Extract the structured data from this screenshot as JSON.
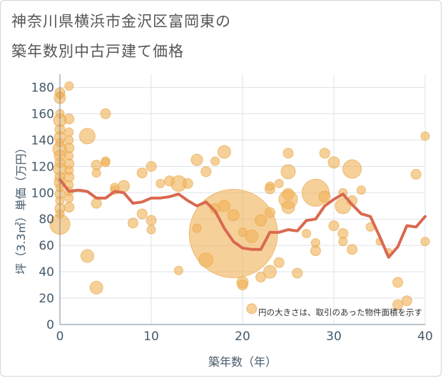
{
  "title_line1": "神奈川県横浜市金沢区富岡東の",
  "title_line2": "築年数別中古戸建て価格",
  "chart_data": {
    "type": "scatter",
    "xlabel": "築年数（年）",
    "ylabel": "坪（3.3㎡）単価（万円）",
    "xlim": [
      0,
      40
    ],
    "ylim": [
      0,
      190
    ],
    "xticks": [
      "0",
      "10",
      "20",
      "30",
      "40"
    ],
    "yticks": [
      "0",
      "20",
      "40",
      "60",
      "80",
      "100",
      "120",
      "140",
      "160",
      "180"
    ],
    "note": "円の大きさは、取引のあった物件面積を示す",
    "grid": true,
    "bubble_color": "#f0b35a",
    "line_color": "#d9694f",
    "bubbles": [
      {
        "x": 0,
        "y": 176,
        "r": 7
      },
      {
        "x": 0,
        "y": 172,
        "r": 8
      },
      {
        "x": 0,
        "y": 160,
        "r": 6
      },
      {
        "x": 0,
        "y": 155,
        "r": 9
      },
      {
        "x": 0,
        "y": 148,
        "r": 7
      },
      {
        "x": 0,
        "y": 142,
        "r": 8
      },
      {
        "x": 0,
        "y": 138,
        "r": 6
      },
      {
        "x": 0,
        "y": 133,
        "r": 10
      },
      {
        "x": 0,
        "y": 128,
        "r": 8
      },
      {
        "x": 0,
        "y": 123,
        "r": 7
      },
      {
        "x": 0,
        "y": 118,
        "r": 9
      },
      {
        "x": 0,
        "y": 112,
        "r": 7
      },
      {
        "x": 0,
        "y": 108,
        "r": 8
      },
      {
        "x": 0,
        "y": 104,
        "r": 6
      },
      {
        "x": 0,
        "y": 99,
        "r": 7
      },
      {
        "x": 0,
        "y": 94,
        "r": 6
      },
      {
        "x": 0,
        "y": 88,
        "r": 7
      },
      {
        "x": 0,
        "y": 84,
        "r": 6
      },
      {
        "x": 0,
        "y": 76,
        "r": 14
      },
      {
        "x": 0,
        "y": 174,
        "r": 5
      },
      {
        "x": 1,
        "y": 181,
        "r": 6
      },
      {
        "x": 1,
        "y": 156,
        "r": 7
      },
      {
        "x": 1,
        "y": 146,
        "r": 6
      },
      {
        "x": 1,
        "y": 140,
        "r": 6
      },
      {
        "x": 1,
        "y": 134,
        "r": 7
      },
      {
        "x": 1,
        "y": 128,
        "r": 6
      },
      {
        "x": 1,
        "y": 122,
        "r": 7
      },
      {
        "x": 1,
        "y": 117,
        "r": 6
      },
      {
        "x": 1,
        "y": 112,
        "r": 7
      },
      {
        "x": 1,
        "y": 106,
        "r": 6
      },
      {
        "x": 1,
        "y": 101,
        "r": 6
      },
      {
        "x": 1,
        "y": 96,
        "r": 6
      },
      {
        "x": 1,
        "y": 89,
        "r": 7
      },
      {
        "x": 3,
        "y": 143,
        "r": 11
      },
      {
        "x": 3,
        "y": 52,
        "r": 9
      },
      {
        "x": 4,
        "y": 121,
        "r": 7
      },
      {
        "x": 4,
        "y": 115,
        "r": 6
      },
      {
        "x": 4,
        "y": 92,
        "r": 7
      },
      {
        "x": 4,
        "y": 28,
        "r": 9
      },
      {
        "x": 5,
        "y": 160,
        "r": 7
      },
      {
        "x": 5,
        "y": 124,
        "r": 6
      },
      {
        "x": 5,
        "y": 123,
        "r": 6
      },
      {
        "x": 6,
        "y": 104,
        "r": 6
      },
      {
        "x": 6,
        "y": 102,
        "r": 6
      },
      {
        "x": 7,
        "y": 105,
        "r": 8
      },
      {
        "x": 8,
        "y": 77,
        "r": 7
      },
      {
        "x": 9,
        "y": 115,
        "r": 7
      },
      {
        "x": 9,
        "y": 84,
        "r": 7
      },
      {
        "x": 10,
        "y": 120,
        "r": 7
      },
      {
        "x": 10,
        "y": 79,
        "r": 7
      },
      {
        "x": 10,
        "y": 72,
        "r": 6
      },
      {
        "x": 11,
        "y": 107,
        "r": 6
      },
      {
        "x": 12,
        "y": 109,
        "r": 7
      },
      {
        "x": 13,
        "y": 107,
        "r": 11
      },
      {
        "x": 13,
        "y": 41,
        "r": 6
      },
      {
        "x": 14,
        "y": 107,
        "r": 7
      },
      {
        "x": 15,
        "y": 125,
        "r": 8
      },
      {
        "x": 15,
        "y": 73,
        "r": 6
      },
      {
        "x": 16,
        "y": 116,
        "r": 7
      },
      {
        "x": 16,
        "y": 49,
        "r": 10
      },
      {
        "x": 17,
        "y": 124,
        "r": 6
      },
      {
        "x": 17,
        "y": 88,
        "r": 7
      },
      {
        "x": 18,
        "y": 131,
        "r": 9
      },
      {
        "x": 18,
        "y": 90,
        "r": 8
      },
      {
        "x": 19,
        "y": 69,
        "r": 62
      },
      {
        "x": 19,
        "y": 83,
        "r": 8
      },
      {
        "x": 20,
        "y": 70,
        "r": 6
      },
      {
        "x": 20,
        "y": 32,
        "r": 8
      },
      {
        "x": 20,
        "y": 30,
        "r": 7
      },
      {
        "x": 21,
        "y": 12,
        "r": 7
      },
      {
        "x": 21,
        "y": 67,
        "r": 9
      },
      {
        "x": 22,
        "y": 79,
        "r": 8
      },
      {
        "x": 22,
        "y": 36,
        "r": 7
      },
      {
        "x": 23,
        "y": 103,
        "r": 7
      },
      {
        "x": 23,
        "y": 105,
        "r": 6
      },
      {
        "x": 23,
        "y": 85,
        "r": 7
      },
      {
        "x": 23,
        "y": 40,
        "r": 9
      },
      {
        "x": 24,
        "y": 107,
        "r": 6
      },
      {
        "x": 24,
        "y": 47,
        "r": 7
      },
      {
        "x": 25,
        "y": 130,
        "r": 7
      },
      {
        "x": 25,
        "y": 116,
        "r": 10
      },
      {
        "x": 25,
        "y": 99,
        "r": 8
      },
      {
        "x": 25,
        "y": 95,
        "r": 13
      },
      {
        "x": 25,
        "y": 89,
        "r": 9
      },
      {
        "x": 26,
        "y": 39,
        "r": 7
      },
      {
        "x": 27,
        "y": 69,
        "r": 6
      },
      {
        "x": 28,
        "y": 100,
        "r": 19
      },
      {
        "x": 28,
        "y": 62,
        "r": 6
      },
      {
        "x": 28,
        "y": 56,
        "r": 7
      },
      {
        "x": 29,
        "y": 130,
        "r": 7
      },
      {
        "x": 29,
        "y": 97,
        "r": 8
      },
      {
        "x": 30,
        "y": 123,
        "r": 8
      },
      {
        "x": 30,
        "y": 75,
        "r": 7
      },
      {
        "x": 31,
        "y": 100,
        "r": 6
      },
      {
        "x": 31,
        "y": 90,
        "r": 11
      },
      {
        "x": 31,
        "y": 69,
        "r": 7
      },
      {
        "x": 31,
        "y": 63,
        "r": 6
      },
      {
        "x": 32,
        "y": 118,
        "r": 13
      },
      {
        "x": 32,
        "y": 94,
        "r": 7
      },
      {
        "x": 32,
        "y": 57,
        "r": 7
      },
      {
        "x": 33,
        "y": 102,
        "r": 6
      },
      {
        "x": 34,
        "y": 74,
        "r": 6
      },
      {
        "x": 35,
        "y": 63,
        "r": 5
      },
      {
        "x": 36,
        "y": 55,
        "r": 5
      },
      {
        "x": 37,
        "y": 32,
        "r": 7
      },
      {
        "x": 37,
        "y": 15,
        "r": 7
      },
      {
        "x": 38,
        "y": 18,
        "r": 7
      },
      {
        "x": 39,
        "y": 114,
        "r": 7
      },
      {
        "x": 40,
        "y": 143,
        "r": 6
      },
      {
        "x": 40,
        "y": 63,
        "r": 6
      }
    ],
    "line": {
      "x": [
        0,
        1,
        2,
        3,
        4,
        5,
        6,
        7,
        8,
        9,
        10,
        11,
        12,
        13,
        14,
        15,
        16,
        17,
        18,
        19,
        20,
        21,
        22,
        23,
        24,
        25,
        26,
        27,
        28,
        29,
        30,
        31,
        32,
        33,
        34,
        35,
        36,
        37,
        38,
        39,
        40
      ],
      "y": [
        110,
        101,
        102,
        101,
        96,
        96,
        101,
        100,
        92,
        93,
        96,
        96,
        97,
        99,
        94,
        90,
        93,
        86,
        73,
        63,
        58,
        57,
        57,
        70,
        70,
        72,
        71,
        79,
        80,
        90,
        95,
        99,
        91,
        84,
        82,
        67,
        51,
        59,
        75,
        74,
        82
      ]
    }
  }
}
